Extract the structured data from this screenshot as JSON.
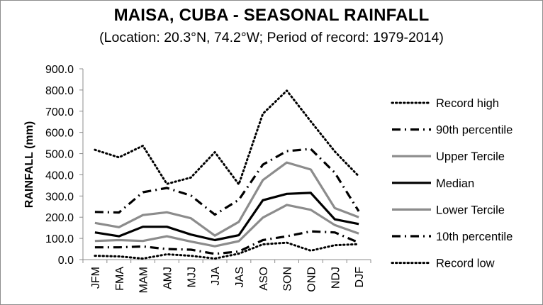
{
  "chart_data": {
    "type": "line",
    "title": "MAISA, CUBA - SEASONAL RAINFALL",
    "subtitle": "(Location: 20.3°N, 74.2°W; Period of record: 1979-2014)",
    "xlabel": "",
    "ylabel": "RAINFALL (mm)",
    "ylim": [
      0,
      900
    ],
    "yticks": [
      "0.0",
      "100.0",
      "200.0",
      "300.0",
      "400.0",
      "500.0",
      "600.0",
      "700.0",
      "800.0",
      "900.0"
    ],
    "categories": [
      "JFM",
      "FMA",
      "MAM",
      "AMJ",
      "MJJ",
      "JJA",
      "JAS",
      "ASO",
      "SON",
      "OND",
      "NDJ",
      "DJF"
    ],
    "legend_position": "right",
    "grid": false,
    "series": [
      {
        "name": "Record high",
        "style": "dotted",
        "color": "#000000",
        "values": [
          518,
          482,
          537,
          357,
          387,
          507,
          355,
          688,
          797,
          652,
          510,
          393
        ]
      },
      {
        "name": "90th percentile",
        "style": "dashdot",
        "color": "#000000",
        "values": [
          225,
          222,
          318,
          338,
          302,
          212,
          282,
          448,
          512,
          522,
          410,
          228
        ]
      },
      {
        "name": "Upper Tercile",
        "style": "solid",
        "color": "#8c8c8c",
        "values": [
          173,
          153,
          210,
          223,
          195,
          113,
          178,
          375,
          458,
          425,
          243,
          200
        ]
      },
      {
        "name": "Median",
        "style": "solid",
        "color": "#000000",
        "values": [
          128,
          110,
          155,
          155,
          118,
          92,
          115,
          280,
          310,
          315,
          190,
          168
        ]
      },
      {
        "name": "Lower Tercile",
        "style": "solid",
        "color": "#8c8c8c",
        "values": [
          88,
          92,
          88,
          110,
          85,
          63,
          87,
          198,
          258,
          235,
          163,
          123
        ]
      },
      {
        "name": "10th percentile",
        "style": "dashdot",
        "color": "#000000",
        "values": [
          58,
          58,
          62,
          50,
          47,
          27,
          38,
          92,
          110,
          133,
          128,
          80
        ]
      },
      {
        "name": "Record low",
        "style": "dotted",
        "color": "#000000",
        "values": [
          18,
          15,
          5,
          25,
          18,
          5,
          28,
          72,
          80,
          42,
          68,
          73
        ]
      }
    ]
  }
}
